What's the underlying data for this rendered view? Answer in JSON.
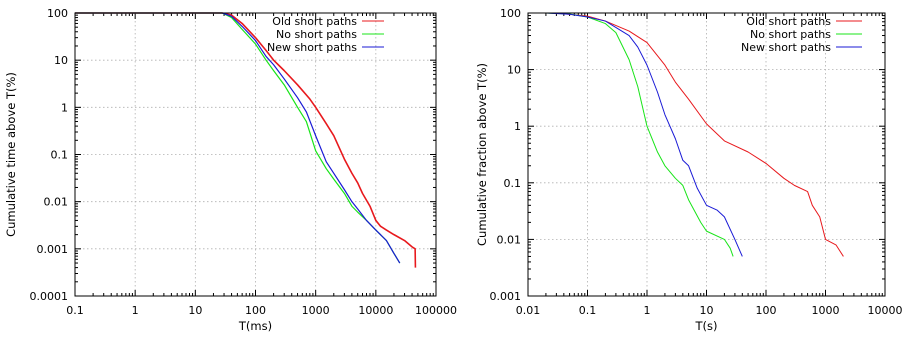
{
  "chart_data": [
    {
      "type": "line",
      "xscale": "log",
      "yscale": "log",
      "xlabel": "T(ms)",
      "ylabel": "Cumulative time above T(%)",
      "xlim": [
        0.1,
        100000
      ],
      "ylim": [
        0.0001,
        100
      ],
      "xticks": [
        0.1,
        1,
        10,
        100,
        1000,
        10000,
        100000
      ],
      "xtick_labels": [
        "0.1",
        "1",
        "10",
        "100",
        "1000",
        "10000",
        "100000"
      ],
      "yticks": [
        0.0001,
        0.001,
        0.01,
        0.1,
        1,
        10,
        100
      ],
      "ytick_labels": [
        "0.0001",
        "0.001",
        "0.01",
        "0.1",
        "1",
        "10",
        "100"
      ],
      "grid": true,
      "legend": "top-right",
      "series": [
        {
          "name": "Old short paths",
          "color": "#e8191d",
          "width": 1.6,
          "points": [
            [
              0.1,
              100
            ],
            [
              28,
              100
            ],
            [
              40,
              90
            ],
            [
              60,
              60
            ],
            [
              100,
              30
            ],
            [
              150,
              16
            ],
            [
              200,
              10
            ],
            [
              300,
              6
            ],
            [
              500,
              3
            ],
            [
              800,
              1.5
            ],
            [
              1000,
              1
            ],
            [
              1500,
              0.45
            ],
            [
              2000,
              0.25
            ],
            [
              3000,
              0.08
            ],
            [
              4000,
              0.04
            ],
            [
              5000,
              0.025
            ],
            [
              6000,
              0.015
            ],
            [
              8000,
              0.008
            ],
            [
              10000,
              0.004
            ],
            [
              12000,
              0.003
            ],
            [
              15000,
              0.0025
            ],
            [
              20000,
              0.002
            ],
            [
              30000,
              0.0015
            ],
            [
              40000,
              0.0011
            ],
            [
              45000,
              0.001
            ],
            [
              45500,
              0.0004
            ]
          ]
        },
        {
          "name": "No short paths",
          "color": "#18e418",
          "width": 1.2,
          "points": [
            [
              0.1,
              100
            ],
            [
              28,
              100
            ],
            [
              40,
              80
            ],
            [
              60,
              45
            ],
            [
              100,
              22
            ],
            [
              150,
              10
            ],
            [
              200,
              6
            ],
            [
              300,
              3
            ],
            [
              500,
              1
            ],
            [
              700,
              0.5
            ],
            [
              1000,
              0.12
            ],
            [
              1500,
              0.05
            ],
            [
              2000,
              0.03
            ],
            [
              3000,
              0.015
            ],
            [
              4000,
              0.008
            ],
            [
              5000,
              0.006
            ],
            [
              7000,
              0.004
            ],
            [
              10000,
              0.0025
            ],
            [
              15000,
              0.0015
            ],
            [
              20000,
              0.0008
            ],
            [
              25000,
              0.0005
            ]
          ]
        },
        {
          "name": "New short paths",
          "color": "#1a1ad6",
          "width": 1.2,
          "points": [
            [
              0.1,
              100
            ],
            [
              28,
              100
            ],
            [
              40,
              85
            ],
            [
              60,
              52
            ],
            [
              100,
              26
            ],
            [
              150,
              12
            ],
            [
              200,
              8
            ],
            [
              300,
              4
            ],
            [
              500,
              1.6
            ],
            [
              700,
              0.8
            ],
            [
              1000,
              0.25
            ],
            [
              1500,
              0.07
            ],
            [
              2000,
              0.04
            ],
            [
              3000,
              0.018
            ],
            [
              4000,
              0.01
            ],
            [
              5000,
              0.007
            ],
            [
              7000,
              0.004
            ],
            [
              10000,
              0.0025
            ],
            [
              15000,
              0.0015
            ],
            [
              20000,
              0.0008
            ],
            [
              25000,
              0.0005
            ]
          ]
        }
      ]
    },
    {
      "type": "line",
      "xscale": "log",
      "yscale": "log",
      "xlabel": "T(s)",
      "ylabel": "Cumulative fraction above T(%)",
      "xlim": [
        0.01,
        10000
      ],
      "ylim": [
        0.001,
        100
      ],
      "xticks": [
        0.01,
        0.1,
        1,
        10,
        100,
        1000,
        10000
      ],
      "xtick_labels": [
        "0.01",
        "0.1",
        "1",
        "10",
        "100",
        "1000",
        "10000"
      ],
      "yticks": [
        0.001,
        0.01,
        0.1,
        1,
        10,
        100
      ],
      "ytick_labels": [
        "0.001",
        "0.01",
        "0.1",
        "1",
        "10",
        "100"
      ],
      "grid": true,
      "legend": "top-right",
      "series": [
        {
          "name": "Old short paths",
          "color": "#e8191d",
          "width": 1.0,
          "points": [
            [
              0.01,
              100
            ],
            [
              0.03,
              100
            ],
            [
              0.1,
              88
            ],
            [
              0.2,
              72
            ],
            [
              0.5,
              48
            ],
            [
              1,
              30
            ],
            [
              2,
              12
            ],
            [
              3,
              6
            ],
            [
              5,
              3
            ],
            [
              10,
              1.1
            ],
            [
              20,
              0.55
            ],
            [
              50,
              0.35
            ],
            [
              100,
              0.22
            ],
            [
              200,
              0.12
            ],
            [
              300,
              0.09
            ],
            [
              500,
              0.07
            ],
            [
              600,
              0.04
            ],
            [
              800,
              0.025
            ],
            [
              1000,
              0.01
            ],
            [
              1500,
              0.008
            ],
            [
              2000,
              0.005
            ]
          ]
        },
        {
          "name": "No short paths",
          "color": "#18e418",
          "width": 1.0,
          "points": [
            [
              0.01,
              100
            ],
            [
              0.02,
              100
            ],
            [
              0.05,
              96
            ],
            [
              0.1,
              85
            ],
            [
              0.2,
              65
            ],
            [
              0.3,
              45
            ],
            [
              0.5,
              15
            ],
            [
              0.7,
              5
            ],
            [
              1,
              1
            ],
            [
              1.5,
              0.35
            ],
            [
              2,
              0.2
            ],
            [
              3,
              0.12
            ],
            [
              4,
              0.09
            ],
            [
              5,
              0.05
            ],
            [
              6,
              0.035
            ],
            [
              8,
              0.02
            ],
            [
              10,
              0.014
            ],
            [
              20,
              0.01
            ],
            [
              25,
              0.007
            ],
            [
              28,
              0.005
            ]
          ]
        },
        {
          "name": "New short paths",
          "color": "#1a1ad6",
          "width": 1.0,
          "points": [
            [
              0.01,
              100
            ],
            [
              0.02,
              100
            ],
            [
              0.05,
              95
            ],
            [
              0.1,
              85
            ],
            [
              0.2,
              72
            ],
            [
              0.5,
              40
            ],
            [
              0.7,
              25
            ],
            [
              1,
              12
            ],
            [
              1.5,
              4
            ],
            [
              2,
              1.6
            ],
            [
              3,
              0.6
            ],
            [
              4,
              0.25
            ],
            [
              5,
              0.2
            ],
            [
              7,
              0.08
            ],
            [
              10,
              0.04
            ],
            [
              15,
              0.033
            ],
            [
              20,
              0.025
            ],
            [
              30,
              0.01
            ],
            [
              40,
              0.005
            ]
          ]
        }
      ]
    }
  ]
}
